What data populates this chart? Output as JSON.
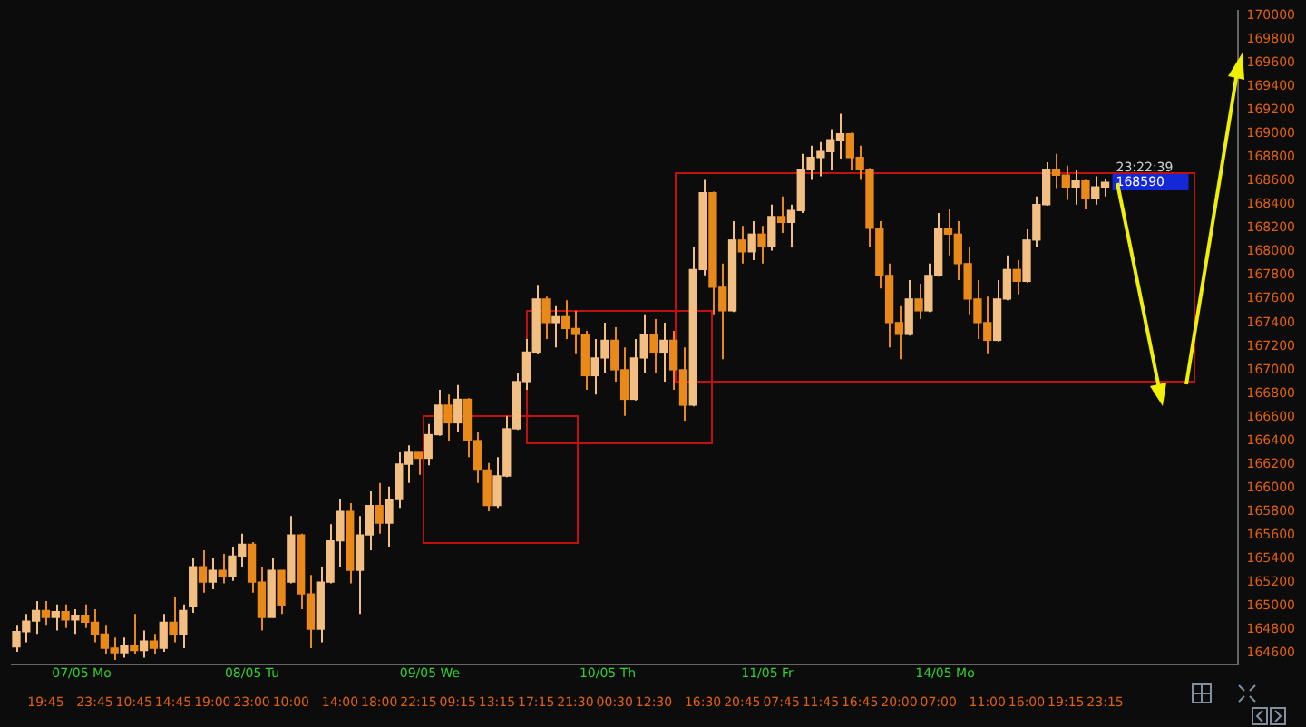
{
  "chart_data": {
    "type": "candlestick",
    "colors": [
      "#f2be81",
      "#f2be81",
      "#f2be81",
      "#e8891a",
      "#f2be81",
      "#e8891a",
      "#f2be81",
      "#e8891a",
      "#e8891a",
      "#e8891a",
      "#e8891a",
      "#f2be81",
      "#e8891a",
      "#f2be81",
      "#e8891a",
      "#f2be81",
      "#e8891a",
      "#f2be81",
      "#f2be81",
      "#e8891a",
      "#f2be81",
      "#e8891a",
      "#f2be81",
      "#f2be81",
      "#e8891a",
      "#e8891a",
      "#f2be81",
      "#e8891a",
      "#f2be81",
      "#e8891a",
      "#e8891a",
      "#f2be81",
      "#f2be81",
      "#f2be81",
      "#e8891a",
      "#f2be81",
      "#f2be81",
      "#e8891a",
      "#f2be81",
      "#f2be81",
      "#f2be81",
      "#e8891a",
      "#f2be81",
      "#f2be81",
      "#e8891a",
      "#f2be81",
      "#e8891a",
      "#e8891a",
      "#e8891a",
      "#f2be81",
      "#f2be81",
      "#f2be81",
      "#f2be81",
      "#f2be81",
      "#e8891a",
      "#f2be81",
      "#e8891a",
      "#e8891a",
      "#e8891a",
      "#f2be81",
      "#f2be81",
      "#e8891a",
      "#e8891a",
      "#f2be81",
      "#f2be81",
      "#e8891a",
      "#f2be81",
      "#e8891a",
      "#e8891a",
      "#f2be81",
      "#f2be81",
      "#e8891a",
      "#e8891a",
      "#f2be81",
      "#e8891a",
      "#f2be81",
      "#e8891a",
      "#f2be81",
      "#e8891a",
      "#f2be81",
      "#f2be81",
      "#f2be81",
      "#f2be81",
      "#f2be81",
      "#f2be81",
      "#e8891a",
      "#e8891a",
      "#e8891a",
      "#e8891a",
      "#e8891a",
      "#e8891a",
      "#f2be81",
      "#e8891a",
      "#f2be81",
      "#f2be81",
      "#e8891a",
      "#e8891a",
      "#e8891a",
      "#e8891a",
      "#e8891a",
      "#f2be81",
      "#f2be81",
      "#e8891a",
      "#f2be81",
      "#f2be81",
      "#f2be81",
      "#e8891a",
      "#e8891a",
      "#f2be81",
      "#e8891a",
      "#f2be81",
      "#f2be81",
      null,
      null,
      null,
      null,
      null,
      null,
      null,
      null,
      null,
      null,
      null,
      null,
      null
    ],
    "categories": [
      null,
      null,
      null,
      "19:45",
      null,
      null,
      null,
      null,
      "23:45",
      null,
      null,
      null,
      "10:45",
      null,
      null,
      null,
      "14:45",
      null,
      null,
      null,
      "19:00",
      null,
      null,
      null,
      "23:00",
      null,
      null,
      null,
      "10:00",
      null,
      null,
      null,
      null,
      "14:00",
      null,
      null,
      null,
      "18:00",
      null,
      null,
      null,
      "22:15",
      null,
      null,
      null,
      "09:15",
      null,
      null,
      null,
      "13:15",
      null,
      null,
      null,
      "17:15",
      null,
      null,
      null,
      "21:30",
      null,
      null,
      null,
      "00:30",
      null,
      null,
      null,
      "12:30",
      null,
      null,
      null,
      null,
      "16:30",
      null,
      null,
      null,
      "20:45",
      null,
      null,
      null,
      "07:45",
      null,
      null,
      null,
      "11:45",
      null,
      null,
      null,
      "16:45",
      null,
      null,
      null,
      "20:00",
      null,
      null,
      null,
      "07:00",
      null,
      null,
      null,
      null,
      "11:00",
      null,
      null,
      null,
      "16:00",
      null,
      null,
      null,
      "19:15",
      null,
      null,
      null,
      "23:15",
      null,
      null,
      null,
      null,
      null,
      null,
      null,
      null,
      null,
      null,
      null,
      null,
      null
    ],
    "ohlc": [
      [
        164650,
        164830,
        164610,
        164780
      ],
      [
        164780,
        164930,
        164690,
        164870
      ],
      [
        164870,
        165040,
        164760,
        164960
      ],
      [
        164960,
        165040,
        164830,
        164900
      ],
      [
        164900,
        165010,
        164790,
        164950
      ],
      [
        164950,
        165010,
        164810,
        164880
      ],
      [
        164880,
        164970,
        164760,
        164920
      ],
      [
        164920,
        165010,
        164810,
        164860
      ],
      [
        164860,
        164970,
        164690,
        164760
      ],
      [
        164760,
        164830,
        164590,
        164640
      ],
      [
        164640,
        164730,
        164540,
        164600
      ],
      [
        164600,
        164730,
        164560,
        164660
      ],
      [
        164660,
        164930,
        164590,
        164620
      ],
      [
        164620,
        164790,
        164560,
        164700
      ],
      [
        164700,
        164760,
        164590,
        164640
      ],
      [
        164640,
        164930,
        164610,
        164860
      ],
      [
        164860,
        165070,
        164690,
        164760
      ],
      [
        164760,
        165010,
        164640,
        164960
      ],
      [
        164990,
        165400,
        164940,
        165330
      ],
      [
        165330,
        165470,
        165110,
        165200
      ],
      [
        165200,
        165400,
        165140,
        165300
      ],
      [
        165300,
        165440,
        165190,
        165250
      ],
      [
        165250,
        165500,
        165210,
        165420
      ],
      [
        165420,
        165610,
        165330,
        165520
      ],
      [
        165520,
        165540,
        165110,
        165200
      ],
      [
        165200,
        165330,
        164790,
        164900
      ],
      [
        164900,
        165400,
        164900,
        165300
      ],
      [
        165300,
        165300,
        164930,
        165000
      ],
      [
        165200,
        165760,
        165190,
        165600
      ],
      [
        165600,
        165610,
        164970,
        165100
      ],
      [
        165100,
        165260,
        164640,
        164800
      ],
      [
        164800,
        165330,
        164690,
        165200
      ],
      [
        165200,
        165690,
        165190,
        165550
      ],
      [
        165550,
        165900,
        165330,
        165800
      ],
      [
        165800,
        165870,
        165190,
        165300
      ],
      [
        165300,
        165760,
        164930,
        165600
      ],
      [
        165600,
        165970,
        165470,
        165850
      ],
      [
        165850,
        166040,
        165610,
        165700
      ],
      [
        165700,
        166010,
        165500,
        165900
      ],
      [
        165900,
        166300,
        165830,
        166200
      ],
      [
        166200,
        166360,
        166040,
        166300
      ],
      [
        166300,
        166300,
        166110,
        166250
      ],
      [
        166250,
        166540,
        166190,
        166450
      ],
      [
        166450,
        166830,
        166440,
        166700
      ],
      [
        166700,
        166790,
        166400,
        166550
      ],
      [
        166550,
        166870,
        166470,
        166750
      ],
      [
        166750,
        166760,
        166260,
        166400
      ],
      [
        166400,
        166470,
        166040,
        166150
      ],
      [
        166150,
        166210,
        165800,
        165850
      ],
      [
        165850,
        166260,
        165830,
        166100
      ],
      [
        166100,
        166610,
        166090,
        166500
      ],
      [
        166500,
        166970,
        166490,
        166900
      ],
      [
        166900,
        167260,
        166830,
        167150
      ],
      [
        167150,
        167720,
        167130,
        167600
      ],
      [
        167600,
        167620,
        167260,
        167400
      ],
      [
        167400,
        167540,
        167190,
        167450
      ],
      [
        167450,
        167590,
        167260,
        167350
      ],
      [
        167350,
        167500,
        167140,
        167300
      ],
      [
        167300,
        167330,
        166830,
        166950
      ],
      [
        166950,
        167260,
        166790,
        167100
      ],
      [
        167100,
        167400,
        166970,
        167250
      ],
      [
        167250,
        167360,
        166900,
        167000
      ],
      [
        167000,
        167190,
        166610,
        166750
      ],
      [
        166750,
        167260,
        166740,
        167100
      ],
      [
        167100,
        167470,
        166970,
        167300
      ],
      [
        167300,
        167430,
        166970,
        167150
      ],
      [
        167150,
        167400,
        166900,
        167250
      ],
      [
        167250,
        167330,
        166830,
        167000
      ],
      [
        167000,
        167190,
        166570,
        166700
      ],
      [
        166700,
        168040,
        166690,
        167850
      ],
      [
        167850,
        168610,
        167800,
        168500
      ],
      [
        168500,
        168510,
        167470,
        167700
      ],
      [
        167700,
        167900,
        167090,
        167500
      ],
      [
        167500,
        168260,
        167490,
        168100
      ],
      [
        168100,
        168220,
        167900,
        168000
      ],
      [
        168000,
        168260,
        167930,
        168150
      ],
      [
        168150,
        168220,
        167900,
        168050
      ],
      [
        168050,
        168400,
        168010,
        168300
      ],
      [
        168300,
        168470,
        168160,
        168250
      ],
      [
        168250,
        168400,
        168040,
        168350
      ],
      [
        168350,
        168830,
        168330,
        168700
      ],
      [
        168700,
        168900,
        168610,
        168800
      ],
      [
        168800,
        168930,
        168640,
        168850
      ],
      [
        168850,
        169040,
        168690,
        168950
      ],
      [
        168950,
        169170,
        168790,
        169000
      ],
      [
        169000,
        169010,
        168690,
        168800
      ],
      [
        168800,
        168900,
        168610,
        168700
      ],
      [
        168700,
        168710,
        168040,
        168200
      ],
      [
        168200,
        168260,
        167690,
        167800
      ],
      [
        167800,
        167900,
        167190,
        167400
      ],
      [
        167400,
        167540,
        167090,
        167300
      ],
      [
        167300,
        167760,
        167290,
        167600
      ],
      [
        167600,
        167730,
        167430,
        167500
      ],
      [
        167500,
        167900,
        167490,
        167800
      ],
      [
        167800,
        168330,
        167790,
        168200
      ],
      [
        168200,
        168360,
        167970,
        168150
      ],
      [
        168150,
        168260,
        167760,
        167900
      ],
      [
        167900,
        168040,
        167470,
        167600
      ],
      [
        167600,
        167760,
        167260,
        167400
      ],
      [
        167400,
        167620,
        167140,
        167250
      ],
      [
        167250,
        167760,
        167240,
        167600
      ],
      [
        167600,
        167970,
        167590,
        167850
      ],
      [
        167850,
        167930,
        167640,
        167750
      ],
      [
        167750,
        168190,
        167740,
        168100
      ],
      [
        168100,
        168470,
        168040,
        168400
      ],
      [
        168400,
        168760,
        168390,
        168700
      ],
      [
        168700,
        168830,
        168540,
        168650
      ],
      [
        168650,
        168730,
        168440,
        168550
      ],
      [
        168550,
        168690,
        168400,
        168600
      ],
      [
        168600,
        168610,
        168360,
        168450
      ],
      [
        168450,
        168640,
        168400,
        168550
      ],
      [
        168550,
        168620,
        168470,
        168590
      ],
      null,
      null,
      null,
      null,
      null,
      null,
      null,
      null,
      null,
      null,
      null,
      null,
      null
    ],
    "ylim": [
      164500,
      170040
    ],
    "yticks": [
      164600,
      164800,
      165000,
      165200,
      165400,
      165600,
      165800,
      166000,
      166200,
      166400,
      166600,
      166800,
      167000,
      167200,
      167400,
      167600,
      167800,
      168000,
      168200,
      168400,
      168600,
      168800,
      169000,
      169200,
      169400,
      169600,
      169800,
      170000
    ],
    "annotations": [
      "07/05 Mo",
      "08/05 Tu",
      "09/05 We",
      "10/05 Th",
      "11/05 Fr",
      "14/05 Mo",
      "23:22:39",
      "168590"
    ],
    "grid": false,
    "legend": false
  }
}
